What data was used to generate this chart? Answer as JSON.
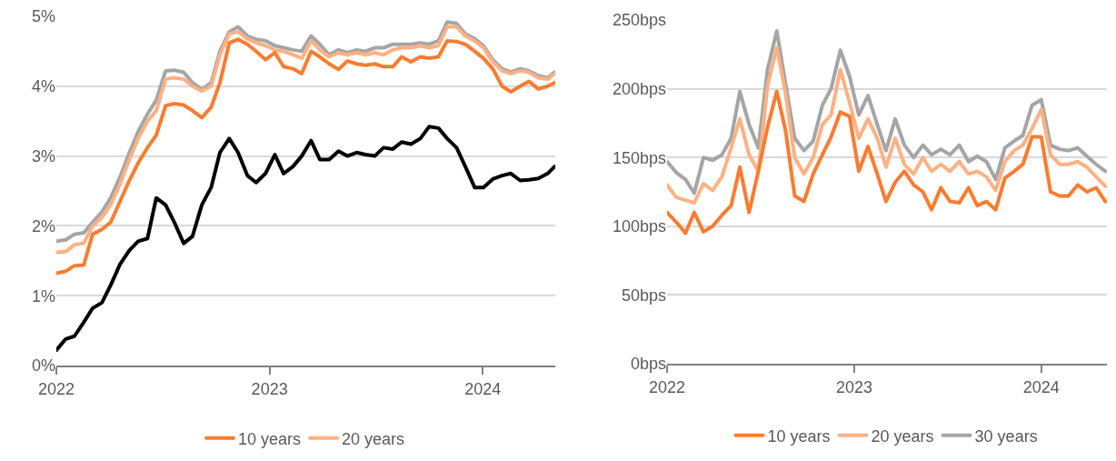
{
  "chart_data": [
    {
      "type": "line",
      "x": [
        "2022-01-01",
        "2022-01-17",
        "2022-02-01",
        "2022-02-17",
        "2022-03-04",
        "2022-03-20",
        "2022-04-04",
        "2022-04-20",
        "2022-05-06",
        "2022-05-21",
        "2022-06-06",
        "2022-06-21",
        "2022-07-07",
        "2022-07-22",
        "2022-08-07",
        "2022-08-22",
        "2022-09-07",
        "2022-09-23",
        "2022-10-08",
        "2022-10-24",
        "2022-11-08",
        "2022-11-24",
        "2022-12-09",
        "2022-12-25",
        "2023-01-10",
        "2023-01-25",
        "2023-02-10",
        "2023-02-25",
        "2023-03-13",
        "2023-03-28",
        "2023-04-13",
        "2023-04-29",
        "2023-05-14",
        "2023-05-30",
        "2023-06-14",
        "2023-06-30",
        "2023-07-15",
        "2023-07-31",
        "2023-08-15",
        "2023-08-31",
        "2023-09-16",
        "2023-10-01",
        "2023-10-17",
        "2023-11-01",
        "2023-11-17",
        "2023-12-02",
        "2023-12-18",
        "2024-01-02",
        "2024-01-18",
        "2024-02-03",
        "2024-02-18",
        "2024-03-05",
        "2024-03-20",
        "2024-04-05",
        "2024-04-21",
        "2024-05-03"
      ],
      "series": [
        {
          "name": "10 years",
          "color": "#fa7c30",
          "values": [
            1.32,
            1.35,
            1.43,
            1.44,
            1.88,
            1.95,
            2.05,
            2.35,
            2.65,
            2.9,
            3.12,
            3.3,
            3.72,
            3.75,
            3.73,
            3.65,
            3.55,
            3.7,
            4.05,
            4.62,
            4.67,
            4.6,
            4.5,
            4.38,
            4.48,
            4.28,
            4.25,
            4.18,
            4.5,
            4.42,
            4.32,
            4.24,
            4.36,
            4.32,
            4.3,
            4.32,
            4.28,
            4.28,
            4.42,
            4.35,
            4.42,
            4.4,
            4.42,
            4.65,
            4.64,
            4.6,
            4.5,
            4.4,
            4.25,
            4.0,
            3.92,
            4.0,
            4.07,
            3.96,
            4.0,
            4.05
          ]
        },
        {
          "name": "20 years",
          "color": "#fdb184",
          "values": [
            1.62,
            1.63,
            1.73,
            1.75,
            2.0,
            2.12,
            2.3,
            2.6,
            2.95,
            3.25,
            3.5,
            3.65,
            4.1,
            4.12,
            4.1,
            4.0,
            3.93,
            4.0,
            4.45,
            4.75,
            4.78,
            4.68,
            4.62,
            4.58,
            4.52,
            4.5,
            4.45,
            4.4,
            4.65,
            4.52,
            4.42,
            4.48,
            4.45,
            4.48,
            4.45,
            4.48,
            4.45,
            4.52,
            4.55,
            4.55,
            4.58,
            4.55,
            4.58,
            4.85,
            4.85,
            4.72,
            4.65,
            4.55,
            4.35,
            4.22,
            4.18,
            4.22,
            4.2,
            4.12,
            4.1,
            4.18
          ]
        },
        {
          "color": "#a5a5a5",
          "values": [
            1.78,
            1.8,
            1.88,
            1.9,
            2.05,
            2.2,
            2.4,
            2.7,
            3.05,
            3.35,
            3.6,
            3.8,
            4.22,
            4.23,
            4.2,
            4.05,
            3.95,
            4.05,
            4.5,
            4.78,
            4.85,
            4.72,
            4.67,
            4.65,
            4.58,
            4.55,
            4.52,
            4.5,
            4.72,
            4.6,
            4.45,
            4.52,
            4.48,
            4.52,
            4.5,
            4.55,
            4.55,
            4.6,
            4.6,
            4.6,
            4.62,
            4.6,
            4.65,
            4.92,
            4.9,
            4.75,
            4.68,
            4.58,
            4.38,
            4.25,
            4.2,
            4.25,
            4.22,
            4.15,
            4.12,
            4.2
          ]
        },
        {
          "color": "#000000",
          "values": [
            0.22,
            0.38,
            0.42,
            0.62,
            0.82,
            0.9,
            1.15,
            1.45,
            1.65,
            1.78,
            1.82,
            2.4,
            2.3,
            2.05,
            1.75,
            1.85,
            2.3,
            2.55,
            3.05,
            3.25,
            3.05,
            2.72,
            2.62,
            2.75,
            3.02,
            2.75,
            2.85,
            3.0,
            3.22,
            2.95,
            2.95,
            3.07,
            3.0,
            3.05,
            3.02,
            3.0,
            3.12,
            3.1,
            3.2,
            3.17,
            3.25,
            3.42,
            3.4,
            3.25,
            3.12,
            2.85,
            2.55,
            2.55,
            2.67,
            2.72,
            2.75,
            2.65,
            2.66,
            2.68,
            2.75,
            2.85
          ]
        }
      ],
      "xlim": [
        "2022-01-01",
        "2024-05-04"
      ],
      "xticks": [
        {
          "value": "2022-01-01",
          "label": "2022"
        },
        {
          "value": "2023-01-01",
          "label": "2023"
        },
        {
          "value": "2024-01-01",
          "label": "2024"
        }
      ],
      "ylim": [
        0,
        5
      ],
      "yticks": [
        {
          "value": 0,
          "label": "0%"
        },
        {
          "value": 1,
          "label": "1%"
        },
        {
          "value": 2,
          "label": "2%"
        },
        {
          "value": 3,
          "label": "3%"
        },
        {
          "value": 4,
          "label": "4%"
        },
        {
          "value": 5,
          "label": "5%"
        }
      ],
      "grid": "y",
      "legend": "bottom",
      "marker": "none",
      "line_style": "solid"
    },
    {
      "type": "line",
      "x": [
        "2022-01-01",
        "2022-01-19",
        "2022-02-06",
        "2022-02-23",
        "2022-03-13",
        "2022-03-31",
        "2022-04-18",
        "2022-05-06",
        "2022-05-23",
        "2022-06-10",
        "2022-06-28",
        "2022-07-16",
        "2022-08-03",
        "2022-08-20",
        "2022-09-07",
        "2022-09-25",
        "2022-10-13",
        "2022-10-31",
        "2022-11-17",
        "2022-12-05",
        "2022-12-23",
        "2023-01-10",
        "2023-01-28",
        "2023-02-15",
        "2023-03-04",
        "2023-03-22",
        "2023-04-09",
        "2023-04-27",
        "2023-05-15",
        "2023-06-01",
        "2023-06-19",
        "2023-07-07",
        "2023-07-25",
        "2023-08-12",
        "2023-08-29",
        "2023-09-16",
        "2023-10-04",
        "2023-10-22",
        "2023-11-09",
        "2023-11-26",
        "2023-12-14",
        "2024-01-01",
        "2024-01-19",
        "2024-02-06",
        "2024-02-23",
        "2024-03-12",
        "2024-03-30",
        "2024-04-17",
        "2024-05-05"
      ],
      "series": [
        {
          "name": "10 years",
          "color": "#fa7c30",
          "values": [
            110,
            103,
            95,
            110,
            96,
            100,
            108,
            115,
            143,
            110,
            140,
            172,
            198,
            170,
            122,
            118,
            138,
            152,
            165,
            183,
            180,
            140,
            158,
            138,
            118,
            132,
            140,
            130,
            125,
            112,
            128,
            118,
            117,
            128,
            115,
            118,
            112,
            135,
            140,
            145,
            165,
            165,
            125,
            122,
            122,
            130,
            125,
            128,
            118
          ]
        },
        {
          "name": "20 years",
          "color": "#fdb184",
          "values": [
            130,
            121,
            119,
            117,
            131,
            126,
            136,
            157,
            178,
            152,
            140,
            202,
            230,
            197,
            150,
            138,
            150,
            174,
            181,
            214,
            190,
            164,
            178,
            164,
            143,
            164,
            145,
            138,
            150,
            140,
            145,
            140,
            147,
            138,
            140,
            136,
            126,
            147,
            155,
            159,
            171,
            185,
            152,
            145,
            145,
            147,
            143,
            136,
            129
          ]
        },
        {
          "name": "30 years",
          "color": "#a5a5a5",
          "values": [
            147,
            139,
            134,
            124,
            150,
            148,
            152,
            164,
            198,
            174,
            157,
            214,
            242,
            204,
            164,
            155,
            162,
            188,
            200,
            228,
            209,
            181,
            195,
            174,
            155,
            178,
            159,
            150,
            159,
            152,
            156,
            152,
            159,
            147,
            151,
            147,
            134,
            157,
            162,
            166,
            188,
            192,
            159,
            156,
            155,
            157,
            151,
            145,
            140
          ]
        }
      ],
      "xlim": [
        "2022-01-01",
        "2024-05-08"
      ],
      "xticks": [
        {
          "value": "2022-01-01",
          "label": "2022"
        },
        {
          "value": "2023-01-01",
          "label": "2023"
        },
        {
          "value": "2024-01-01",
          "label": "2024"
        }
      ],
      "ylim": [
        0,
        250
      ],
      "yticks": [
        {
          "value": 0,
          "label": "0bps"
        },
        {
          "value": 50,
          "label": "50bps"
        },
        {
          "value": 100,
          "label": "100bps"
        },
        {
          "value": 150,
          "label": "150bps"
        },
        {
          "value": 200,
          "label": "200bps"
        },
        {
          "value": 250,
          "label": "250bps"
        }
      ],
      "grid": "y",
      "legend": "bottom",
      "marker": "none",
      "line_style": "solid"
    }
  ]
}
